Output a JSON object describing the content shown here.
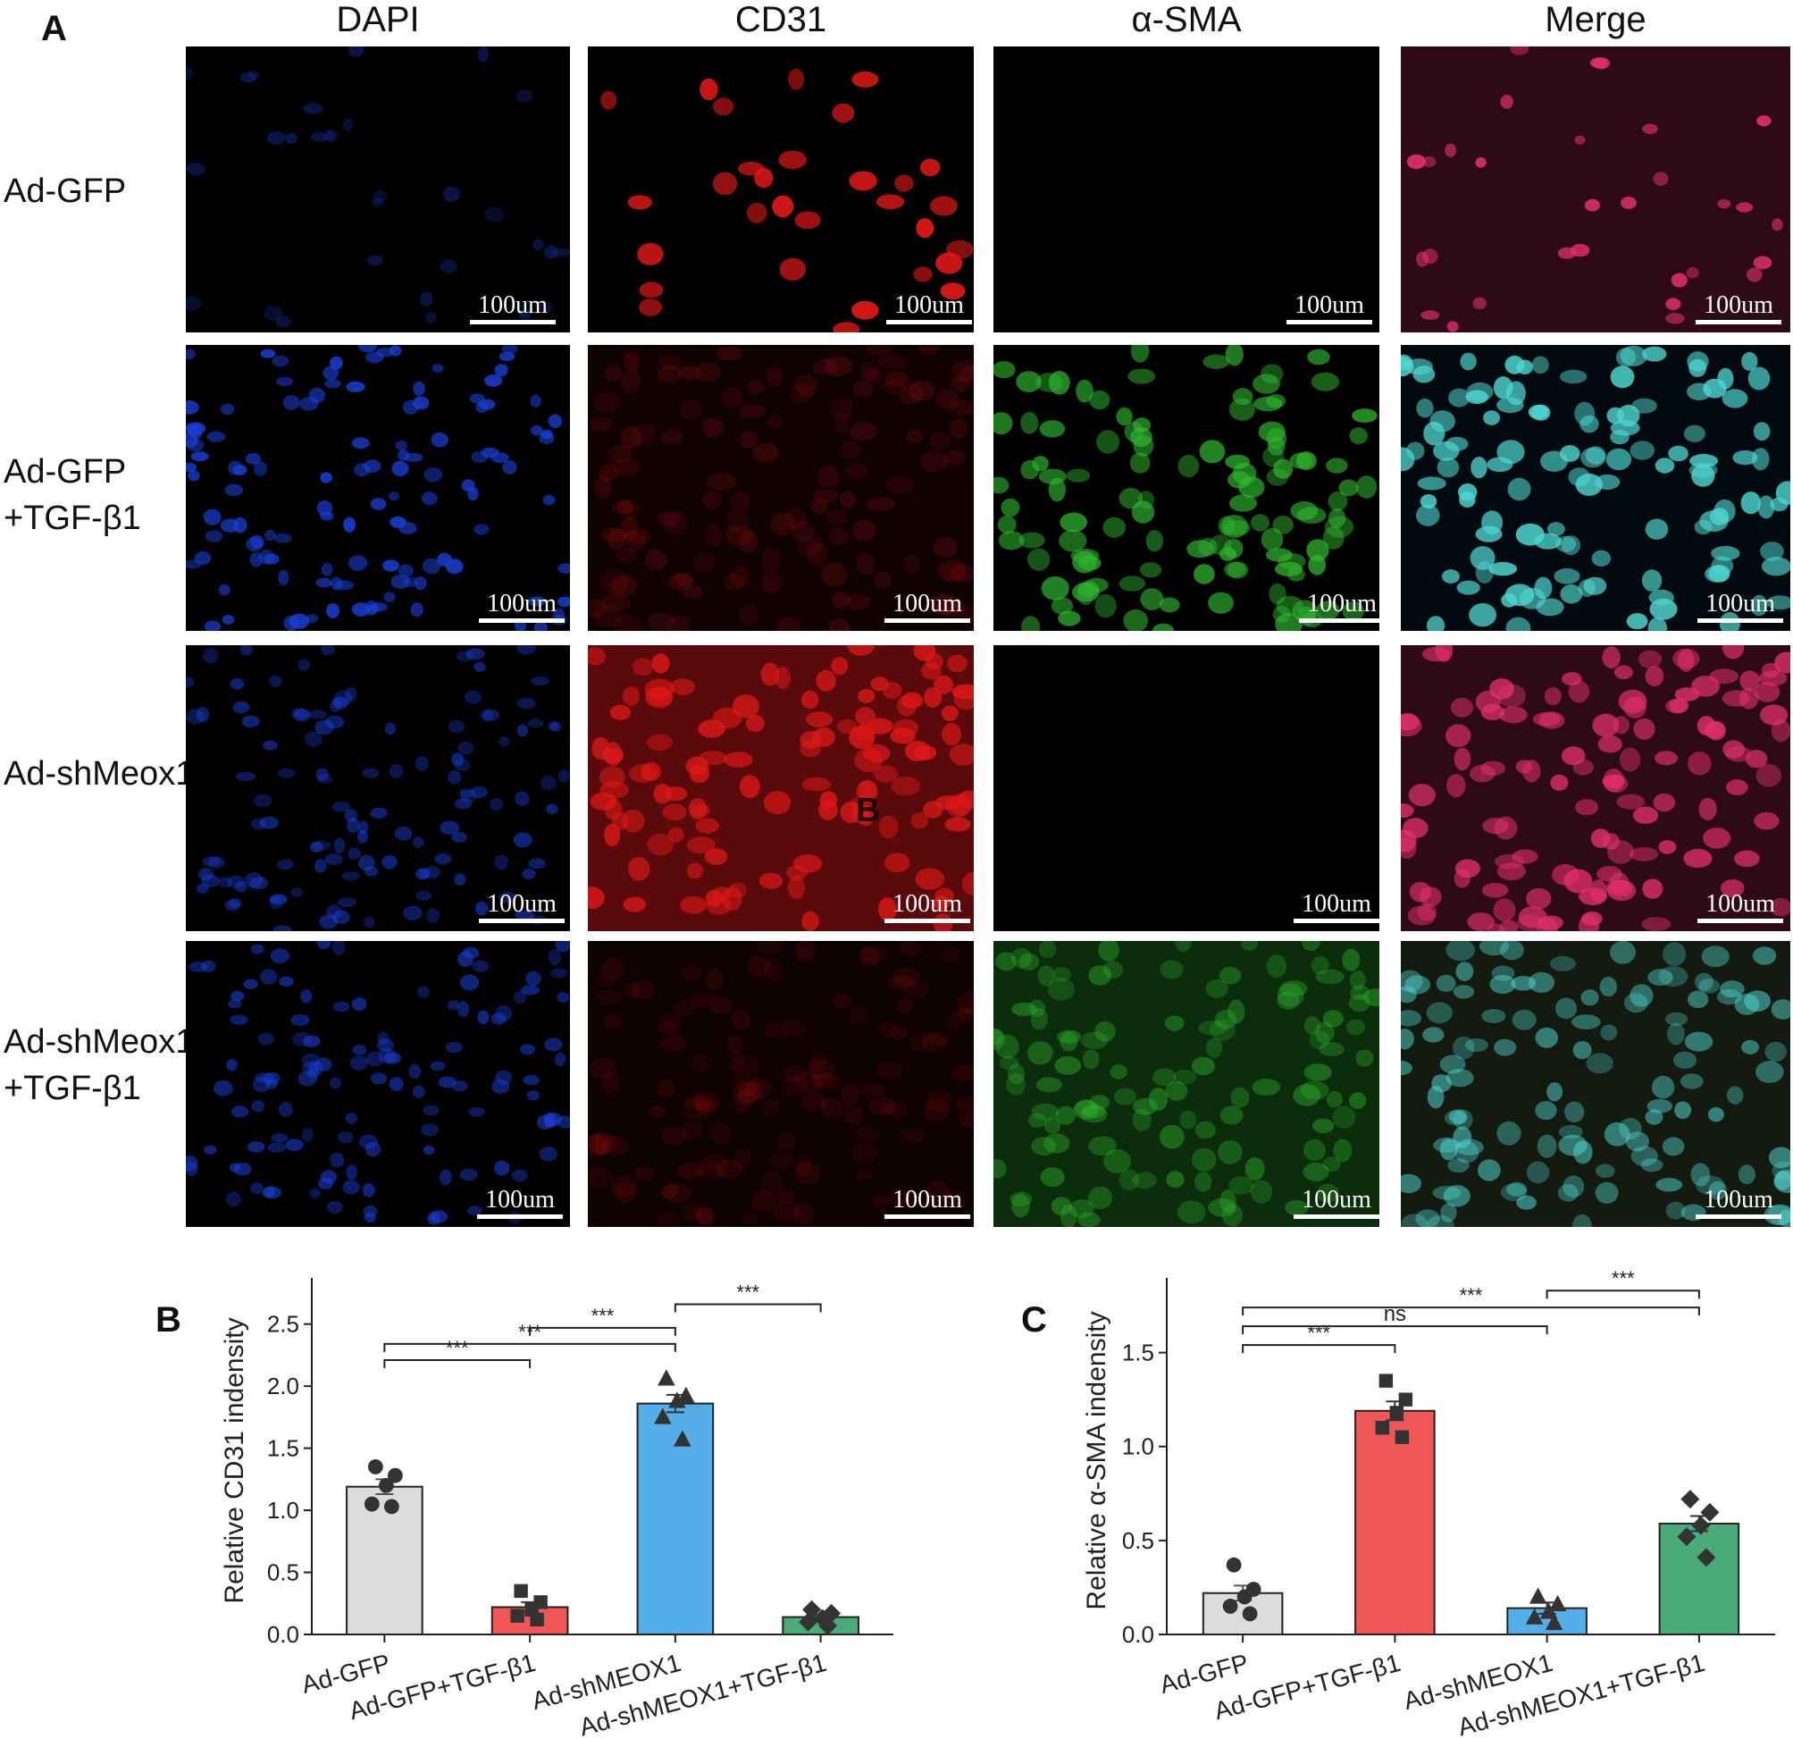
{
  "figure": {
    "panel_a_letter": "A",
    "columns": [
      "DAPI",
      "CD31",
      "α-SMA",
      "Merge"
    ],
    "rows": [
      {
        "lines": [
          "Ad-GFP"
        ]
      },
      {
        "lines": [
          "Ad-GFP",
          "+TGF-β1"
        ]
      },
      {
        "lines": [
          "Ad-shMeox1"
        ]
      },
      {
        "lines": [
          "Ad-shMeox1",
          "+TGF-β1"
        ]
      }
    ],
    "scale_bar": "100um",
    "stray_letter": "B",
    "channel_colors": {
      "dapi": "#1a3fd6",
      "cd31": "#e01818",
      "sma": "#2fb52f",
      "merge_cyan": "#4fd6d0",
      "merge_magenta": "#e0306a"
    },
    "intensity": [
      {
        "dapi": 0.35,
        "cd31": 0.95,
        "sma": 0.0,
        "merge": 0.9
      },
      {
        "dapi": 0.85,
        "cd31": 0.15,
        "sma": 0.75,
        "merge": 0.85
      },
      {
        "dapi": 0.55,
        "cd31": 0.8,
        "sma": 0.02,
        "merge": 0.8
      },
      {
        "dapi": 0.6,
        "cd31": 0.12,
        "sma": 0.45,
        "merge": 0.55
      }
    ]
  },
  "chart_data": [
    {
      "panel": "B",
      "type": "bar",
      "ylabel": "Relative CD31 indensity",
      "categories": [
        "Ad-GFP",
        "Ad-GFP+TGF-β1",
        "Ad-shMEOX1",
        "Ad-shMEOX1+TGF-β1"
      ],
      "values": [
        1.19,
        0.22,
        1.86,
        0.14
      ],
      "sem": [
        0.06,
        0.04,
        0.07,
        0.02
      ],
      "colors": [
        "#dcdcdc",
        "#f05656",
        "#56aee8",
        "#4aab78"
      ],
      "markers": [
        "circle",
        "square",
        "triangle",
        "diamond"
      ],
      "points": [
        [
          1.35,
          1.28,
          1.2,
          1.05,
          1.03
        ],
        [
          0.35,
          0.26,
          0.2,
          0.15,
          0.12
        ],
        [
          2.06,
          1.92,
          1.88,
          1.75,
          1.57
        ],
        [
          0.2,
          0.17,
          0.13,
          0.1,
          0.07
        ]
      ],
      "ylim": [
        0,
        2.8
      ],
      "yticks": [
        "0.0",
        "0.5",
        "1.0",
        "1.5",
        "2.0",
        "2.5"
      ],
      "significance": [
        {
          "from": 0,
          "to": 1,
          "y": 2.21,
          "label": "***"
        },
        {
          "from": 0,
          "to": 2,
          "y": 2.34,
          "label": "***"
        },
        {
          "from": 1,
          "to": 2,
          "y": 2.47,
          "label": "***"
        },
        {
          "from": 2,
          "to": 3,
          "y": 2.66,
          "label": "***"
        }
      ]
    },
    {
      "panel": "C",
      "type": "bar",
      "ylabel": "Relative α-SMA indensity",
      "categories": [
        "Ad-GFP",
        "Ad-GFP+TGF-β1",
        "Ad-shMEOX1",
        "Ad-shMEOX1+TGF-β1"
      ],
      "values": [
        0.22,
        1.19,
        0.14,
        0.59
      ],
      "sem": [
        0.04,
        0.05,
        0.03,
        0.04
      ],
      "colors": [
        "#dcdcdc",
        "#f05656",
        "#56aee8",
        "#4aab78"
      ],
      "markers": [
        "circle",
        "square",
        "triangle",
        "diamond"
      ],
      "points": [
        [
          0.37,
          0.24,
          0.2,
          0.15,
          0.11
        ],
        [
          1.35,
          1.25,
          1.18,
          1.1,
          1.05
        ],
        [
          0.2,
          0.16,
          0.12,
          0.09,
          0.06
        ],
        [
          0.72,
          0.65,
          0.58,
          0.52,
          0.41
        ]
      ],
      "ylim": [
        0,
        1.85
      ],
      "yticks": [
        "0.0",
        "0.5",
        "1.0",
        "1.5"
      ],
      "significance": [
        {
          "from": 0,
          "to": 1,
          "y": 1.54,
          "label": "***"
        },
        {
          "from": 0,
          "to": 2,
          "y": 1.64,
          "label": "ns"
        },
        {
          "from": 0,
          "to": 3,
          "y": 1.74,
          "label": "***"
        },
        {
          "from": 2,
          "to": 3,
          "y": 1.83,
          "label": "***"
        }
      ]
    }
  ]
}
